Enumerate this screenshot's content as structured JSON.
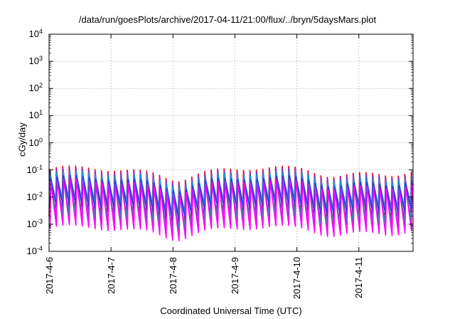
{
  "chart_data": {
    "type": "line",
    "title": "/data/run/goesPlots/archive/2017-04-11/21:00/flux/../bryn/5daysMars.plot",
    "xlabel": "Coordinated Universal Time (UTC)",
    "ylabel": "cGy/day",
    "yscale": "log",
    "ylim": [
      0.0001,
      10000
    ],
    "xlim": [
      "2017-04-06T00:00",
      "2017-04-11T21:00"
    ],
    "grid": true,
    "yticks": [
      {
        "base": "10",
        "exp": "-4"
      },
      {
        "base": "10",
        "exp": "-3"
      },
      {
        "base": "10",
        "exp": "-2"
      },
      {
        "base": "10",
        "exp": "-1"
      },
      {
        "base": "10",
        "exp": "0"
      },
      {
        "base": "10",
        "exp": "1"
      },
      {
        "base": "10",
        "exp": "2"
      },
      {
        "base": "10",
        "exp": "3"
      },
      {
        "base": "10",
        "exp": "4"
      }
    ],
    "xticks": [
      "2017-4-6",
      "2017-4-7",
      "2017-4-8",
      "2017-4-9",
      "2017-4-10",
      "2017-4-11"
    ],
    "sawtooth_period_hours": 2.5,
    "series": [
      {
        "color": "#e0001c",
        "peak": 0.09,
        "trough": 0.0017
      },
      {
        "color": "#8a2be2",
        "peak": 0.075,
        "trough": 0.0013
      },
      {
        "color": "#10a0a0",
        "peak": 0.06,
        "trough": 0.0012
      },
      {
        "color": "#1e90ff",
        "peak": 0.05,
        "trough": 0.005
      },
      {
        "color": "#1f3fd0",
        "peak": 0.04,
        "trough": 0.0035
      },
      {
        "color": "#ff00ff",
        "peak": 0.03,
        "trough": 0.0006
      }
    ],
    "colors": {
      "grid": "#b0b0b0",
      "axis": "#000000"
    }
  }
}
